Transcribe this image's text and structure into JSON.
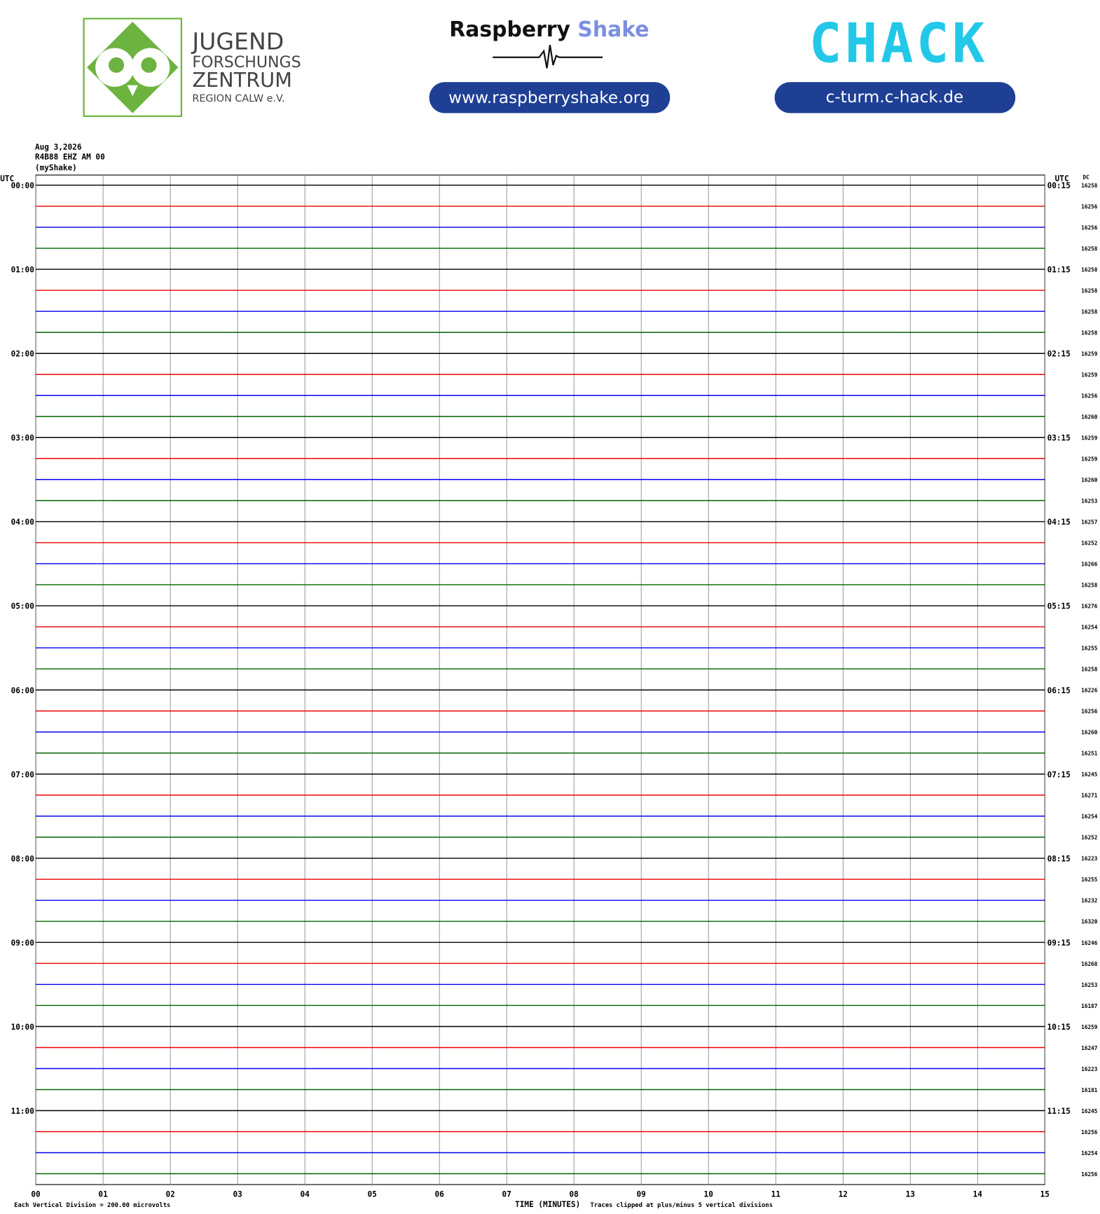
{
  "header": {
    "org_lines": [
      "JUGEND",
      "FORSCHUNGS",
      "ZENTRUM",
      "REGION CALW e.V."
    ],
    "brand_1": "Raspberry",
    "brand_2": "Shake",
    "url_1": "www.raspberryshake.org",
    "logo_2": "CHACK",
    "url_2": "c-turm.c-hack.de"
  },
  "plot": {
    "date": "Aug 3,2026",
    "station": "R4B88 EHZ AM 00",
    "source": "(myShake)",
    "utc_left": "UTC",
    "utc_right": "UTC",
    "dc_label": "DC",
    "trace_colors": [
      "#000000",
      "#ee0000",
      "#0000ee",
      "#006600"
    ],
    "hours": [
      {
        "start": "00:00",
        "end": "00:15",
        "dc": [
          16258,
          16256,
          16256,
          16258
        ]
      },
      {
        "start": "01:00",
        "end": "01:15",
        "dc": [
          16258,
          16258,
          16258,
          16258
        ]
      },
      {
        "start": "02:00",
        "end": "02:15",
        "dc": [
          16259,
          16259,
          16256,
          16260
        ]
      },
      {
        "start": "03:00",
        "end": "03:15",
        "dc": [
          16259,
          16259,
          16260,
          16253
        ]
      },
      {
        "start": "04:00",
        "end": "04:15",
        "dc": [
          16257,
          16252,
          16266,
          16258
        ]
      },
      {
        "start": "05:00",
        "end": "05:15",
        "dc": [
          16276,
          16254,
          16255,
          16258
        ]
      },
      {
        "start": "06:00",
        "end": "06:15",
        "dc": [
          16226,
          16256,
          16260,
          16251
        ]
      },
      {
        "start": "07:00",
        "end": "07:15",
        "dc": [
          16245,
          16271,
          16254,
          16252
        ]
      },
      {
        "start": "08:00",
        "end": "08:15",
        "dc": [
          16223,
          16255,
          16232,
          16320
        ]
      },
      {
        "start": "09:00",
        "end": "09:15",
        "dc": [
          16246,
          16268,
          16253,
          16187
        ]
      },
      {
        "start": "10:00",
        "end": "10:15",
        "dc": [
          16259,
          16247,
          16223,
          16181
        ]
      },
      {
        "start": "11:00",
        "end": "11:15",
        "dc": [
          16245,
          16256,
          16254,
          16256
        ]
      }
    ],
    "xlim": [
      0,
      15
    ],
    "xticks": [
      {
        "value": 0,
        "label": "00"
      },
      {
        "value": 1,
        "label": "01"
      },
      {
        "value": 2,
        "label": "02"
      },
      {
        "value": 3,
        "label": "03"
      },
      {
        "value": 4,
        "label": "04"
      },
      {
        "value": 5,
        "label": "05"
      },
      {
        "value": 6,
        "label": "06"
      },
      {
        "value": 7,
        "label": "07"
      },
      {
        "value": 8,
        "label": "08"
      },
      {
        "value": 9,
        "label": "09"
      },
      {
        "value": 10,
        "label": "10"
      },
      {
        "value": 11,
        "label": "11"
      },
      {
        "value": 12,
        "label": "12"
      },
      {
        "value": 13,
        "label": "13"
      },
      {
        "value": 14,
        "label": "14"
      },
      {
        "value": 15,
        "label": 15
      }
    ],
    "x_title": "TIME (MINUTES)",
    "scale_note": "Each Vertical Division = 200.00 microvolts",
    "clip_note": "Traces clipped at plus/minus 5 vertical divisions"
  }
}
